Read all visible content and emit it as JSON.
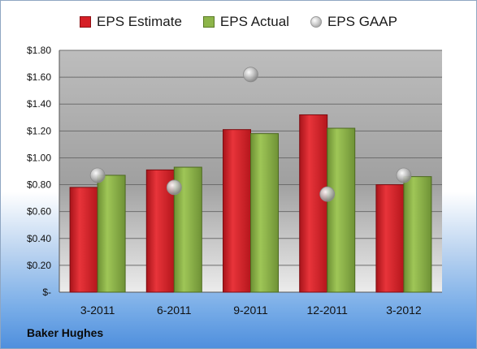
{
  "company_label": "Baker Hughes",
  "colors": {
    "estimate": "#d61f26",
    "actual": "#8db54a",
    "gaap": "#b8b8b8"
  },
  "chart_data": {
    "type": "bar",
    "categories": [
      "3-2011",
      "6-2011",
      "9-2011",
      "12-2011",
      "3-2012"
    ],
    "series": [
      {
        "name": "EPS Estimate",
        "values": [
          0.78,
          0.91,
          1.21,
          1.32,
          0.8
        ]
      },
      {
        "name": "EPS Actual",
        "values": [
          0.87,
          0.93,
          1.18,
          1.22,
          0.86
        ]
      },
      {
        "name": "EPS GAAP",
        "values": [
          0.87,
          0.78,
          1.62,
          0.73,
          0.87
        ],
        "style": "marker"
      }
    ],
    "ylim": [
      0,
      1.8
    ],
    "yticks": [
      {
        "value": 0,
        "label": "$-"
      },
      {
        "value": 0.2,
        "label": "$0.20"
      },
      {
        "value": 0.4,
        "label": "$0.40"
      },
      {
        "value": 0.6,
        "label": "$0.60"
      },
      {
        "value": 0.8,
        "label": "$0.80"
      },
      {
        "value": 1.0,
        "label": "$1.00"
      },
      {
        "value": 1.2,
        "label": "$1.20"
      },
      {
        "value": 1.4,
        "label": "$1.40"
      },
      {
        "value": 1.6,
        "label": "$1.60"
      },
      {
        "value": 1.8,
        "label": "$1.80"
      }
    ],
    "grid": true,
    "legend": "top"
  }
}
